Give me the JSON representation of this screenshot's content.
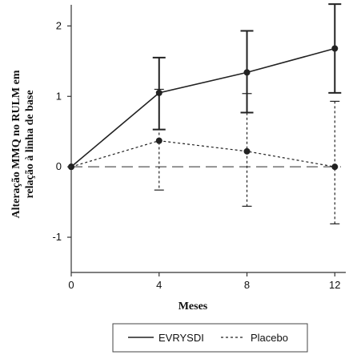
{
  "chart_data": {
    "type": "line",
    "title": "",
    "xlabel": "Meses",
    "ylabel": [
      "Alteração MMQ no RULM em",
      "relação à linha de base"
    ],
    "x": [
      0,
      4,
      8,
      12
    ],
    "xlim": [
      0,
      12.5
    ],
    "ylim": [
      -1.5,
      2.3
    ],
    "x_ticks": [
      "0",
      "4",
      "8",
      "12"
    ],
    "y_ticks": [
      "-1",
      "0",
      "1",
      "2"
    ],
    "y_tick_values": [
      -1,
      0,
      1,
      2
    ],
    "grid": false,
    "legend_position": "bottom",
    "series": [
      {
        "name": "EVRYSDI",
        "style": "solid",
        "values": [
          0,
          1.05,
          1.34,
          1.68
        ],
        "err_low": [
          0,
          0.53,
          0.77,
          1.05
        ],
        "err_high": [
          0,
          1.55,
          1.93,
          2.31
        ]
      },
      {
        "name": "Placebo",
        "style": "dotted",
        "values": [
          0,
          0.37,
          0.22,
          0.0
        ],
        "err_low": [
          0,
          -0.33,
          -0.56,
          -0.81
        ],
        "err_high": [
          0,
          1.1,
          1.04,
          0.93
        ]
      }
    ],
    "reference_line": {
      "y": 0,
      "style": "dashed"
    },
    "colors": {
      "line": "#222222"
    }
  }
}
